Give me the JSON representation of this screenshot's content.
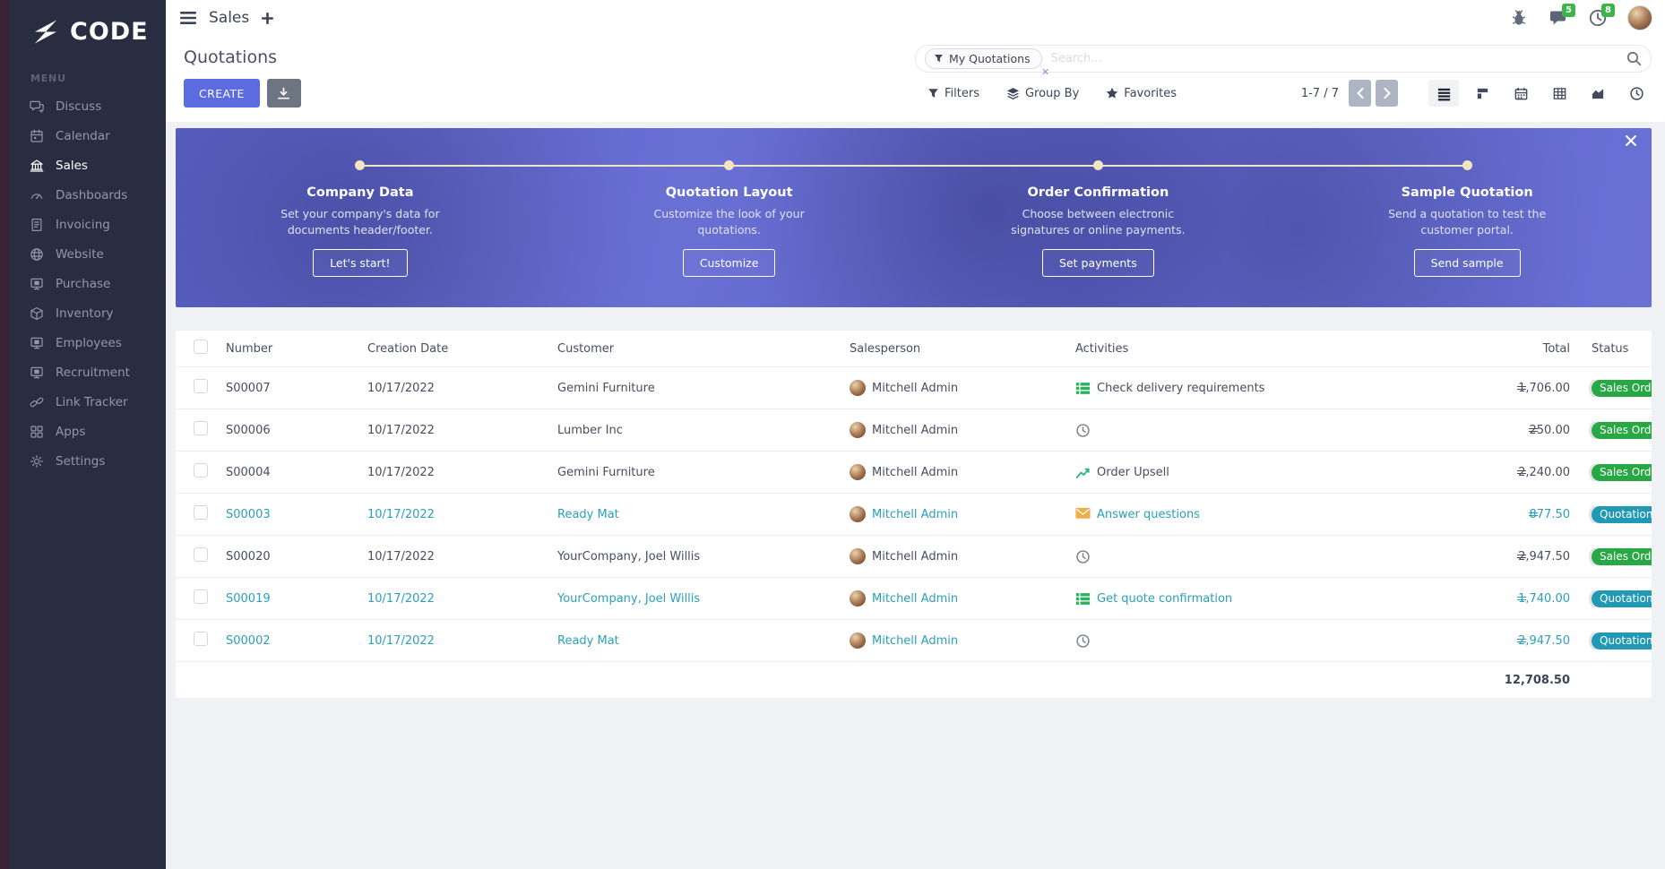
{
  "brand": {
    "name": "CODE",
    "menu_label": "MENU"
  },
  "topbar": {
    "app_title": "Sales",
    "badges": {
      "messages": "5",
      "activities": "8"
    }
  },
  "sidebar": {
    "items": [
      {
        "id": "discuss",
        "label": "Discuss",
        "icon": "chat",
        "active": false
      },
      {
        "id": "calendar",
        "label": "Calendar",
        "icon": "calendar",
        "active": false
      },
      {
        "id": "sales",
        "label": "Sales",
        "icon": "bank",
        "active": true
      },
      {
        "id": "dashboards",
        "label": "Dashboards",
        "icon": "gauge",
        "active": false
      },
      {
        "id": "invoicing",
        "label": "Invoicing",
        "icon": "invoice",
        "active": false
      },
      {
        "id": "website",
        "label": "Website",
        "icon": "globe",
        "active": false
      },
      {
        "id": "purchase",
        "label": "Purchase",
        "icon": "monitor",
        "active": false
      },
      {
        "id": "inventory",
        "label": "Inventory",
        "icon": "box",
        "active": false
      },
      {
        "id": "employees",
        "label": "Employees",
        "icon": "monitor",
        "active": false
      },
      {
        "id": "recruitment",
        "label": "Recruitment",
        "icon": "monitor",
        "active": false
      },
      {
        "id": "link-tracker",
        "label": "Link Tracker",
        "icon": "link",
        "active": false
      },
      {
        "id": "apps",
        "label": "Apps",
        "icon": "grid",
        "active": false
      },
      {
        "id": "settings",
        "label": "Settings",
        "icon": "gear",
        "active": false
      }
    ]
  },
  "control_panel": {
    "title": "Quotations",
    "search": {
      "facet": "My Quotations",
      "placeholder": "Search..."
    },
    "create_label": "CREATE",
    "filters_label": "Filters",
    "group_by_label": "Group By",
    "favorites_label": "Favorites",
    "pager": {
      "display": "1-7 / 7"
    }
  },
  "banner": {
    "steps": [
      {
        "title": "Company Data",
        "description": "Set your company's data for documents header/footer.",
        "button": "Let's start!"
      },
      {
        "title": "Quotation Layout",
        "description": "Customize the look of your quotations.",
        "button": "Customize"
      },
      {
        "title": "Order Confirmation",
        "description": "Choose between electronic signatures or online payments.",
        "button": "Set payments"
      },
      {
        "title": "Sample Quotation",
        "description": "Send a quotation to test the customer portal.",
        "button": "Send sample"
      }
    ]
  },
  "table": {
    "columns": [
      "Number",
      "Creation Date",
      "Customer",
      "Salesperson",
      "Activities",
      "Total",
      "Status"
    ],
    "rows": [
      {
        "number": "S00007",
        "date": "10/17/2022",
        "customer": "Gemini Furniture",
        "salesperson": "Mitchell Admin",
        "activity": {
          "icon": "tasks",
          "label": "Check delivery requirements"
        },
        "total": "1,706.00",
        "status": "Sales Order",
        "status_color": "green",
        "highlight": false
      },
      {
        "number": "S00006",
        "date": "10/17/2022",
        "customer": "Lumber Inc",
        "salesperson": "Mitchell Admin",
        "activity": {
          "icon": "clock",
          "label": ""
        },
        "total": "250.00",
        "status": "Sales Order",
        "status_color": "green",
        "highlight": false
      },
      {
        "number": "S00004",
        "date": "10/17/2022",
        "customer": "Gemini Furniture",
        "salesperson": "Mitchell Admin",
        "activity": {
          "icon": "chart",
          "label": "Order Upsell"
        },
        "total": "2,240.00",
        "status": "Sales Order",
        "status_color": "green",
        "highlight": false
      },
      {
        "number": "S00003",
        "date": "10/17/2022",
        "customer": "Ready Mat",
        "salesperson": "Mitchell Admin",
        "activity": {
          "icon": "envelope",
          "label": "Answer questions"
        },
        "total": "877.50",
        "status": "Quotation",
        "status_color": "teal",
        "highlight": true
      },
      {
        "number": "S00020",
        "date": "10/17/2022",
        "customer": "YourCompany, Joel Willis",
        "salesperson": "Mitchell Admin",
        "activity": {
          "icon": "clock",
          "label": ""
        },
        "total": "2,947.50",
        "status": "Sales Order",
        "status_color": "green",
        "highlight": false
      },
      {
        "number": "S00019",
        "date": "10/17/2022",
        "customer": "YourCompany, Joel Willis",
        "salesperson": "Mitchell Admin",
        "activity": {
          "icon": "tasks",
          "label": "Get quote confirmation"
        },
        "total": "1,740.00",
        "status": "Quotation Sent",
        "status_color": "teal",
        "highlight": true
      },
      {
        "number": "S00002",
        "date": "10/17/2022",
        "customer": "Ready Mat",
        "salesperson": "Mitchell Admin",
        "activity": {
          "icon": "clock",
          "label": ""
        },
        "total": "2,947.50",
        "status": "Quotation",
        "status_color": "teal",
        "highlight": true
      }
    ],
    "footer_total": "12,708.50"
  },
  "colors": {
    "accent": "#5b6ce0",
    "sidebar_bg": "#282d41",
    "edge_strip": "#3a2133",
    "banner_overlay": "#6068cd",
    "timeline_cream": "#f2e4c0",
    "status_green": "#28a745",
    "status_teal": "#2299b4",
    "highlight_text": "#2b9fb9",
    "badge_green": "#3eb54b"
  }
}
